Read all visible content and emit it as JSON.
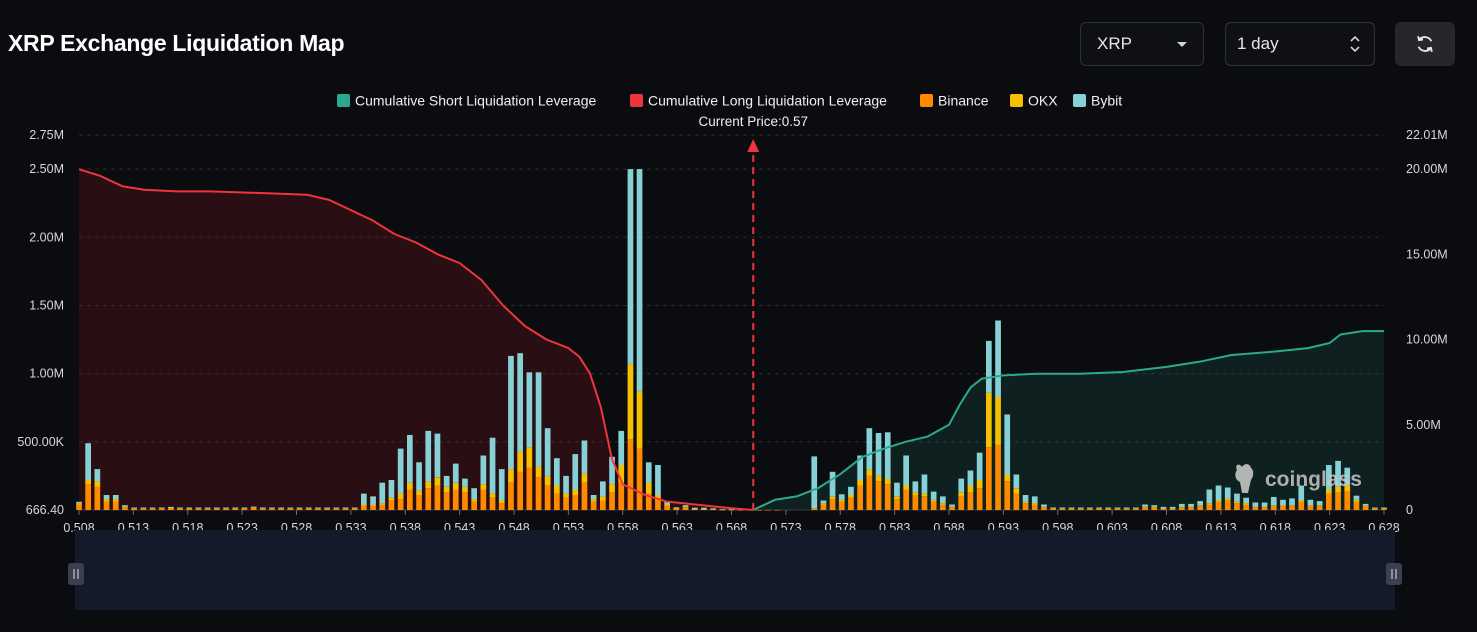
{
  "header": {
    "title": "XRP Exchange Liquidation Map",
    "symbol": "XRP",
    "range": "1 day"
  },
  "watermark": "coinglass",
  "colors": {
    "short_line": "#2aa98e",
    "long_line": "#f0343c",
    "binance": "#ff8a00",
    "okx": "#f4c000",
    "bybit": "#86d1d6",
    "background": "#0b0c0f"
  },
  "chart_data": {
    "type": "bar",
    "legend": [
      "Cumulative Short Liquidation Leverage",
      "Cumulative Long Liquidation Leverage",
      "Binance",
      "OKX",
      "Bybit"
    ],
    "legend_position": "top-center",
    "current_price_label": "Current Price:0.57",
    "current_price": 0.57,
    "x_ticks": [
      "0.508",
      "0.513",
      "0.518",
      "0.523",
      "0.528",
      "0.533",
      "0.538",
      "0.543",
      "0.548",
      "0.553",
      "0.558",
      "0.563",
      "0.568",
      "0.573",
      "0.578",
      "0.583",
      "0.588",
      "0.593",
      "0.598",
      "0.603",
      "0.608",
      "0.613",
      "0.618",
      "0.623",
      "0.628"
    ],
    "y_left_ticks": [
      "2.75M",
      "2.50M",
      "2.00M",
      "1.50M",
      "1.00M",
      "500.00K",
      "666.40"
    ],
    "y_right_ticks": [
      "22.01M",
      "20.00M",
      "15.00M",
      "10.00M",
      "5.00M",
      "0"
    ],
    "y_left_range": [
      666.4,
      2750000
    ],
    "y_right_range": [
      0,
      22010000
    ],
    "x_range": [
      0.508,
      0.628
    ],
    "bar_series": [
      {
        "name": "Binance",
        "values": [
          40000,
          190000,
          170000,
          60000,
          60000,
          20000,
          10000,
          10000,
          10000,
          10000,
          15000,
          10000,
          10000,
          10000,
          10000,
          10000,
          10000,
          10000,
          10000,
          15000,
          10000,
          10000,
          10000,
          10000,
          10000,
          10000,
          10000,
          10000,
          10000,
          10000,
          10000,
          30000,
          30000,
          40000,
          70000,
          80000,
          150000,
          110000,
          160000,
          180000,
          130000,
          150000,
          130000,
          60000,
          150000,
          90000,
          50000,
          200000,
          280000,
          310000,
          240000,
          180000,
          120000,
          90000,
          110000,
          200000,
          60000,
          70000,
          130000,
          200000,
          520000,
          450000,
          120000,
          70000,
          30000,
          10000,
          20000,
          5000,
          5000,
          5000,
          3000,
          3000,
          2000,
          2000,
          1000,
          1000,
          1000,
          0,
          0,
          0,
          10000,
          40000,
          80000,
          60000,
          90000,
          180000,
          250000,
          210000,
          190000,
          80000,
          150000,
          110000,
          100000,
          60000,
          40000,
          20000,
          100000,
          130000,
          160000,
          460000,
          480000,
          210000,
          120000,
          50000,
          40000,
          20000,
          10000,
          10000,
          10000,
          10000,
          10000,
          10000,
          10000,
          10000,
          10000,
          10000,
          20000,
          20000,
          10000,
          10000,
          20000,
          20000,
          30000,
          40000,
          60000,
          70000,
          50000,
          40000,
          20000,
          20000,
          30000,
          30000,
          30000,
          60000,
          30000,
          30000,
          120000,
          130000,
          140000,
          60000,
          30000,
          10000,
          10000
        ]
      },
      {
        "name": "OKX",
        "values": [
          10000,
          30000,
          40000,
          20000,
          20000,
          5000,
          3000,
          3000,
          3000,
          3000,
          3000,
          3000,
          3000,
          3000,
          3000,
          3000,
          3000,
          3000,
          3000,
          5000,
          3000,
          3000,
          3000,
          3000,
          3000,
          3000,
          3000,
          3000,
          3000,
          3000,
          3000,
          10000,
          10000,
          10000,
          20000,
          40000,
          50000,
          30000,
          50000,
          60000,
          40000,
          50000,
          40000,
          20000,
          40000,
          30000,
          20000,
          100000,
          150000,
          150000,
          80000,
          70000,
          60000,
          30000,
          40000,
          70000,
          20000,
          30000,
          60000,
          130000,
          550000,
          420000,
          80000,
          40000,
          10000,
          5000,
          5000,
          2000,
          2000,
          2000,
          1000,
          1000,
          1000,
          1000,
          0,
          0,
          0,
          0,
          0,
          0,
          3000,
          10000,
          20000,
          15000,
          20000,
          40000,
          50000,
          45000,
          40000,
          20000,
          30000,
          20000,
          20000,
          15000,
          10000,
          5000,
          30000,
          50000,
          60000,
          400000,
          350000,
          50000,
          40000,
          10000,
          10000,
          5000,
          3000,
          3000,
          3000,
          3000,
          3000,
          3000,
          3000,
          3000,
          3000,
          3000,
          5000,
          5000,
          3000,
          3000,
          5000,
          5000,
          5000,
          10000,
          10000,
          15000,
          10000,
          10000,
          5000,
          5000,
          5000,
          5000,
          5000,
          10000,
          5000,
          5000,
          30000,
          40000,
          40000,
          15000,
          5000,
          3000,
          3000
        ]
      },
      {
        "name": "Bybit",
        "values": [
          10000,
          270000,
          90000,
          30000,
          30000,
          10000,
          5000,
          5000,
          5000,
          5000,
          5000,
          5000,
          5000,
          5000,
          5000,
          5000,
          5000,
          5000,
          5000,
          5000,
          5000,
          5000,
          5000,
          5000,
          5000,
          5000,
          5000,
          5000,
          5000,
          5000,
          5000,
          80000,
          60000,
          150000,
          130000,
          330000,
          350000,
          210000,
          370000,
          320000,
          80000,
          140000,
          60000,
          80000,
          210000,
          410000,
          230000,
          830000,
          720000,
          550000,
          690000,
          350000,
          200000,
          130000,
          260000,
          240000,
          30000,
          110000,
          200000,
          250000,
          1430000,
          1630000,
          150000,
          220000,
          20000,
          5000,
          10000,
          10000,
          10000,
          5000,
          2000,
          2000,
          2000,
          2000,
          0,
          0,
          0,
          0,
          0,
          0,
          380000,
          20000,
          180000,
          40000,
          60000,
          180000,
          300000,
          310000,
          340000,
          100000,
          220000,
          80000,
          140000,
          60000,
          50000,
          15000,
          100000,
          110000,
          200000,
          380000,
          560000,
          440000,
          100000,
          50000,
          50000,
          15000,
          5000,
          5000,
          5000,
          5000,
          5000,
          5000,
          5000,
          5000,
          5000,
          5000,
          15000,
          10000,
          10000,
          10000,
          20000,
          20000,
          30000,
          100000,
          110000,
          80000,
          60000,
          40000,
          30000,
          30000,
          60000,
          40000,
          50000,
          110000,
          40000,
          30000,
          180000,
          190000,
          130000,
          30000,
          10000,
          5000,
          5000
        ]
      }
    ],
    "cumulative_long": {
      "name": "Cumulative Long Liquidation Leverage",
      "x": [
        0.508,
        0.51,
        0.512,
        0.514,
        0.517,
        0.52,
        0.525,
        0.529,
        0.531,
        0.533,
        0.535,
        0.537,
        0.539,
        0.541,
        0.543,
        0.545,
        0.547,
        0.549,
        0.551,
        0.553,
        0.554,
        0.555,
        0.556,
        0.557,
        0.558,
        0.56,
        0.562,
        0.565,
        0.568,
        0.57
      ],
      "y": [
        20000000,
        19600000,
        19000000,
        18800000,
        18700000,
        18700000,
        18600000,
        18500000,
        18200000,
        17600000,
        17000000,
        16200000,
        15700000,
        15000000,
        14500000,
        13500000,
        12000000,
        10800000,
        10000000,
        9500000,
        9000000,
        8000000,
        6000000,
        3000000,
        1500000,
        900000,
        500000,
        300000,
        100000,
        0
      ]
    },
    "cumulative_short": {
      "name": "Cumulative Short Liquidation Leverage",
      "x": [
        0.57,
        0.572,
        0.574,
        0.576,
        0.578,
        0.58,
        0.582,
        0.584,
        0.586,
        0.588,
        0.589,
        0.59,
        0.591,
        0.593,
        0.596,
        0.6,
        0.604,
        0.608,
        0.611,
        0.614,
        0.618,
        0.621,
        0.623,
        0.624,
        0.626,
        0.628
      ],
      "y": [
        0,
        600000,
        800000,
        1300000,
        2100000,
        3100000,
        3600000,
        4000000,
        4300000,
        5000000,
        6200000,
        7200000,
        7700000,
        7900000,
        8000000,
        8000000,
        8100000,
        8400000,
        8700000,
        9100000,
        9300000,
        9500000,
        9800000,
        10300000,
        10500000,
        10500000
      ]
    }
  }
}
